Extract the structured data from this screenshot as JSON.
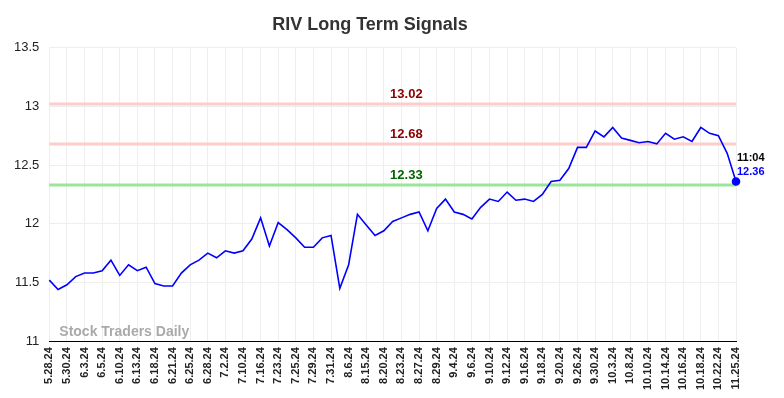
{
  "chart_data": {
    "type": "line",
    "title": "RIV Long Term Signals",
    "watermark": "Stock Traders Daily",
    "categories": [
      "5.28.24",
      null,
      "5.30.24",
      null,
      "6.3.24",
      null,
      "6.5.24",
      null,
      "6.10.24",
      null,
      "6.13.24",
      null,
      "6.18.24",
      null,
      "6.21.24",
      null,
      "6.25.24",
      null,
      "6.28.24",
      null,
      "7.2.24",
      null,
      "7.10.24",
      null,
      "7.16.24",
      null,
      "7.23.24",
      null,
      "7.25.24",
      null,
      "7.29.24",
      null,
      "7.31.24",
      null,
      "8.6.24",
      null,
      "8.15.24",
      null,
      "8.20.24",
      null,
      "8.23.24",
      null,
      "8.27.24",
      null,
      "8.29.24",
      null,
      "9.4.24",
      null,
      "9.6.24",
      null,
      "9.10.24",
      null,
      "9.12.24",
      null,
      "9.16.24",
      null,
      "9.18.24",
      null,
      "9.20.24",
      null,
      "9.26.24",
      null,
      "9.30.24",
      null,
      "10.3.24",
      null,
      "10.8.24",
      null,
      "10.10.24",
      null,
      "10.14.24",
      null,
      "10.16.24",
      null,
      "10.18.24",
      null,
      "10.22.24",
      null,
      "11.25.24"
    ],
    "values": [
      11.52,
      11.44,
      11.48,
      11.55,
      11.58,
      11.58,
      11.6,
      11.69,
      11.56,
      11.65,
      11.6,
      11.63,
      11.49,
      11.47,
      11.47,
      11.58,
      11.65,
      11.69,
      11.75,
      11.71,
      11.77,
      11.75,
      11.77,
      11.87,
      12.05,
      11.81,
      12.01,
      11.95,
      11.88,
      11.8,
      11.8,
      11.88,
      11.9,
      11.45,
      11.65,
      12.08,
      11.99,
      11.9,
      11.94,
      12.02,
      12.05,
      12.08,
      12.1,
      11.94,
      12.13,
      12.21,
      12.1,
      12.08,
      12.04,
      12.14,
      12.21,
      12.19,
      12.27,
      12.2,
      12.21,
      12.19,
      12.25,
      12.36,
      12.37,
      12.47,
      12.65,
      12.65,
      12.79,
      12.74,
      12.82,
      12.73,
      12.71,
      12.69,
      12.7,
      12.68,
      12.77,
      12.72,
      12.74,
      12.7,
      12.82,
      12.77,
      12.75,
      12.6,
      12.36
    ],
    "color": "#0000ff",
    "ylim": [
      11,
      13.5
    ],
    "yticks": [
      11,
      11.5,
      12,
      12.5,
      13,
      13.5
    ],
    "grid": true,
    "annotations": [
      {
        "value": 13.02,
        "label": "13.02",
        "color": "#ffcccc"
      },
      {
        "value": 12.68,
        "label": "12.68",
        "color": "#ffcccc"
      },
      {
        "value": 12.33,
        "label": "12.33",
        "color": "#99e699"
      }
    ],
    "end_annotation": {
      "time": "11:04",
      "value": 12.36
    }
  }
}
